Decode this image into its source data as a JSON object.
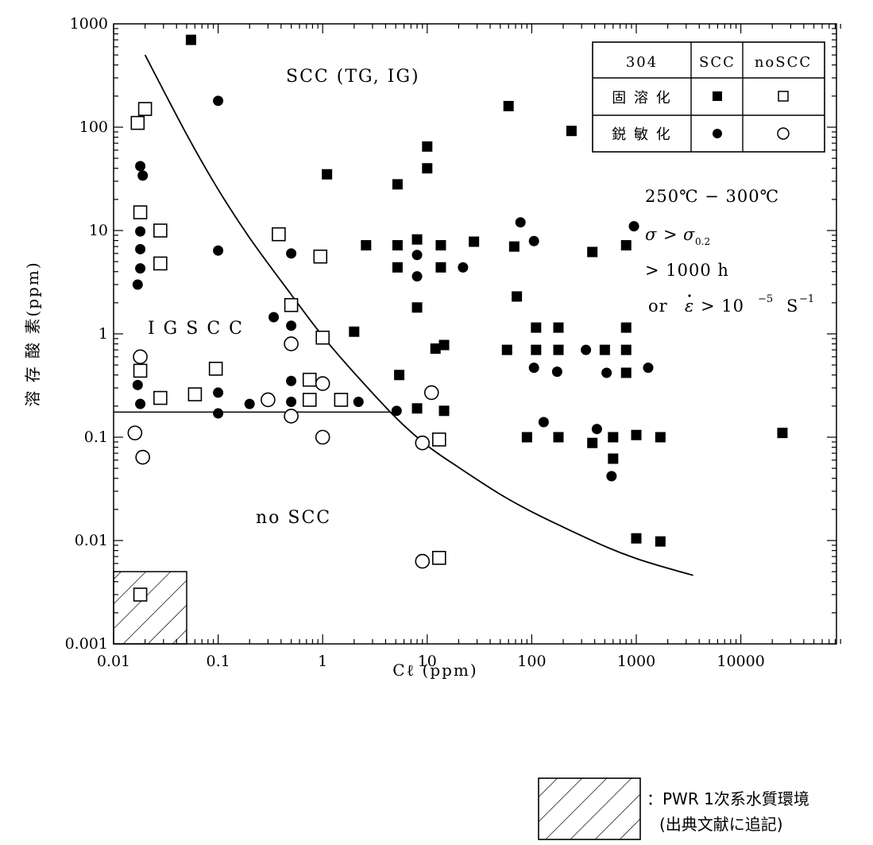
{
  "chart_data": {
    "type": "scatter",
    "xlabel": "Cℓ (ppm)",
    "ylabel": "溶 存 酸 素(ppm)",
    "xscale": "log",
    "yscale": "log",
    "xlim": [
      0.01,
      100000
    ],
    "ylim": [
      0.001,
      1000
    ],
    "x_tick_labels": [
      "0.01",
      "0.1",
      "1",
      "10",
      "100",
      "1000",
      "10000"
    ],
    "y_tick_labels": [
      "0.001",
      "0.01",
      "0.1",
      "1",
      "10",
      "100",
      "1000"
    ],
    "grid": false,
    "legend_position": "top-right",
    "legend": {
      "header": [
        "304",
        "SCC",
        "noSCC"
      ],
      "rows": [
        {
          "label": "固 溶 化",
          "scc_marker": "filled-square",
          "noscc_marker": "open-square"
        },
        {
          "label": "鋭 敏 化",
          "scc_marker": "filled-circle",
          "noscc_marker": "open-circle"
        }
      ]
    },
    "annotations": {
      "scc_region": "SCC (TG, IG)",
      "igscc_region": "I G S C C",
      "noscc_region": "no SCC",
      "conditions": {
        "temperature": "250℃ − 300℃",
        "stress_prefix": "σ >",
        "stress_symbol": "σ",
        "stress_subscript": "0.2",
        "time": "> 1000 h",
        "strain_prefix": "or",
        "strain_symbol": "ε",
        "strain_op": "> 10",
        "strain_exp": "−5",
        "strain_unit": "S",
        "strain_unit_exp": "−1"
      }
    },
    "boundary_curve": {
      "x": [
        0.02,
        0.05,
        0.1,
        0.2,
        0.5,
        1,
        2,
        5,
        10,
        20,
        50,
        100,
        200,
        500,
        1000,
        2000,
        3500
      ],
      "y": [
        500,
        85,
        25,
        8.5,
        2.4,
        0.95,
        0.42,
        0.155,
        0.083,
        0.051,
        0.028,
        0.019,
        0.0135,
        0.0088,
        0.0067,
        0.0054,
        0.0046
      ]
    },
    "threshold_line": {
      "x": [
        0.01,
        4.5
      ],
      "y": 0.175
    },
    "pwr_box": {
      "x": [
        0.01,
        0.05
      ],
      "y": [
        0.001,
        0.005
      ]
    },
    "series": [
      {
        "name": "固溶化 SCC",
        "marker": "filled-square",
        "points": [
          [
            0.055,
            700
          ],
          [
            1.1,
            35
          ],
          [
            5.2,
            28
          ],
          [
            10,
            65
          ],
          [
            10,
            40
          ],
          [
            60,
            160
          ],
          [
            240,
            92
          ],
          [
            2.6,
            7.2
          ],
          [
            5.2,
            7.2
          ],
          [
            8,
            8.2
          ],
          [
            13.5,
            7.2
          ],
          [
            28,
            7.8
          ],
          [
            68,
            7
          ],
          [
            380,
            6.2
          ],
          [
            800,
            7.2
          ],
          [
            5.2,
            4.4
          ],
          [
            13.5,
            4.4
          ],
          [
            72,
            2.3
          ],
          [
            8,
            1.8
          ],
          [
            2,
            1.05
          ],
          [
            110,
            1.15
          ],
          [
            180,
            1.15
          ],
          [
            800,
            1.15
          ],
          [
            12,
            0.72
          ],
          [
            14.5,
            0.78
          ],
          [
            58,
            0.7
          ],
          [
            110,
            0.7
          ],
          [
            180,
            0.7
          ],
          [
            500,
            0.7
          ],
          [
            800,
            0.7
          ],
          [
            5.4,
            0.4
          ],
          [
            800,
            0.42
          ],
          [
            8,
            0.19
          ],
          [
            14.5,
            0.18
          ],
          [
            90,
            0.1
          ],
          [
            180,
            0.1
          ],
          [
            380,
            0.088
          ],
          [
            600,
            0.1
          ],
          [
            1000,
            0.105
          ],
          [
            1700,
            0.1
          ],
          [
            600,
            0.062
          ],
          [
            25000,
            0.11
          ],
          [
            1000,
            0.0105
          ],
          [
            1700,
            0.0098
          ]
        ]
      },
      {
        "name": "固溶化 noSCC",
        "marker": "open-square",
        "points": [
          [
            0.017,
            110
          ],
          [
            0.02,
            150
          ],
          [
            0.018,
            15
          ],
          [
            0.028,
            10
          ],
          [
            0.028,
            4.8
          ],
          [
            0.38,
            9.2
          ],
          [
            0.95,
            5.6
          ],
          [
            0.5,
            1.9
          ],
          [
            1,
            0.92
          ],
          [
            0.095,
            0.46
          ],
          [
            0.018,
            0.44
          ],
          [
            0.028,
            0.24
          ],
          [
            0.06,
            0.26
          ],
          [
            0.75,
            0.36
          ],
          [
            0.75,
            0.23
          ],
          [
            1.5,
            0.23
          ],
          [
            13,
            0.095
          ],
          [
            13,
            0.0068
          ],
          [
            0.018,
            0.003
          ]
        ]
      },
      {
        "name": "鋭敏化 SCC",
        "marker": "filled-circle",
        "points": [
          [
            0.1,
            180
          ],
          [
            0.018,
            42
          ],
          [
            0.019,
            34
          ],
          [
            0.018,
            9.8
          ],
          [
            0.018,
            6.6
          ],
          [
            0.018,
            4.3
          ],
          [
            0.017,
            3.0
          ],
          [
            0.1,
            6.4
          ],
          [
            0.5,
            6.0
          ],
          [
            8,
            5.8
          ],
          [
            8,
            3.6
          ],
          [
            22,
            4.4
          ],
          [
            78,
            12
          ],
          [
            105,
            7.9
          ],
          [
            950,
            11
          ],
          [
            0.34,
            1.45
          ],
          [
            0.5,
            1.2
          ],
          [
            105,
            0.47
          ],
          [
            175,
            0.43
          ],
          [
            330,
            0.7
          ],
          [
            520,
            0.42
          ],
          [
            1300,
            0.47
          ],
          [
            0.017,
            0.32
          ],
          [
            0.1,
            0.27
          ],
          [
            0.018,
            0.21
          ],
          [
            0.1,
            0.17
          ],
          [
            0.2,
            0.21
          ],
          [
            0.5,
            0.35
          ],
          [
            0.5,
            0.22
          ],
          [
            2.2,
            0.22
          ],
          [
            5.1,
            0.18
          ],
          [
            130,
            0.14
          ],
          [
            420,
            0.12
          ],
          [
            580,
            0.042
          ]
        ]
      },
      {
        "name": "鋭敏化 noSCC",
        "marker": "open-circle",
        "points": [
          [
            0.018,
            0.6
          ],
          [
            0.016,
            0.11
          ],
          [
            0.019,
            0.064
          ],
          [
            0.5,
            0.8
          ],
          [
            1,
            0.33
          ],
          [
            0.3,
            0.23
          ],
          [
            0.5,
            0.16
          ],
          [
            1,
            0.1
          ],
          [
            11,
            0.27
          ],
          [
            9,
            0.088
          ],
          [
            9,
            0.0063
          ]
        ]
      }
    ],
    "footnote": {
      "line1": "：PWR 1次系水質環境",
      "line2": "(出典文献に追記)"
    }
  }
}
